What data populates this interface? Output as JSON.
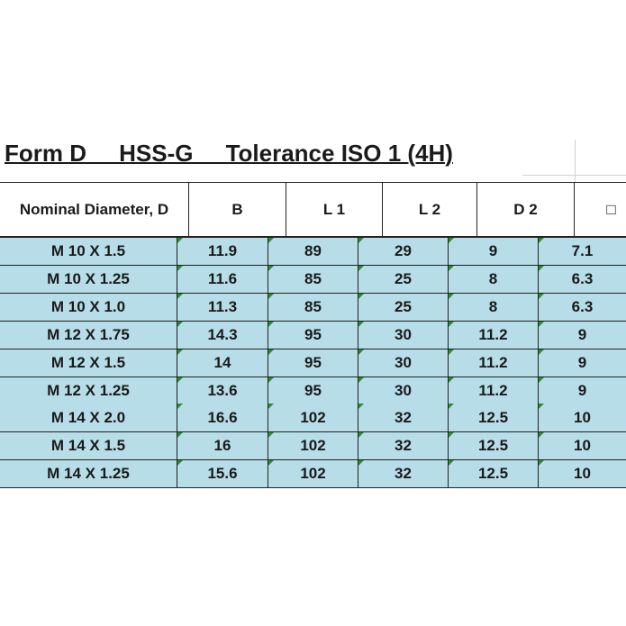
{
  "title": "Form D     HSS-G     Tolerance ISO 1 (4H)",
  "table": {
    "header": [
      "Nominal Diameter, D",
      "B",
      "L 1",
      "L 2",
      "D 2",
      "□"
    ],
    "rows": [
      [
        "M 10 X 1.5",
        "11.9",
        "89",
        "29",
        "9",
        "7.1"
      ],
      [
        "M 10 X 1.25",
        "11.6",
        "85",
        "25",
        "8",
        "6.3"
      ],
      [
        "M 10 X 1.0",
        "11.3",
        "85",
        "25",
        "8",
        "6.3"
      ],
      [
        "M 12 X 1.75",
        "14.3",
        "95",
        "30",
        "11.2",
        "9"
      ],
      [
        "M 12 X 1.5",
        "14",
        "95",
        "30",
        "11.2",
        "9"
      ],
      [
        "M 12 X 1.25",
        "13.6",
        "95",
        "30",
        "11.2",
        "9"
      ],
      [
        "M 14 X 2.0",
        "16.6",
        "102",
        "32",
        "12.5",
        "10"
      ],
      [
        "M 14 X 1.5",
        "16",
        "102",
        "32",
        "12.5",
        "10"
      ],
      [
        "M 14 X 1.25",
        "15.6",
        "102",
        "32",
        "12.5",
        "10"
      ]
    ]
  }
}
